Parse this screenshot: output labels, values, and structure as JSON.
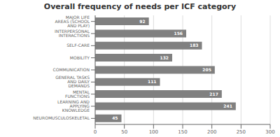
{
  "chart_data": {
    "type": "bar",
    "title": "Overall frequency of needs per ICF category",
    "categories": [
      "NEUROMUSCULOSKELETAL",
      "LEARNING AND APPLYING KNOWLEDGE",
      "MENTAL FUNCTIONS",
      "GENERAL TASKS AND DAILY DEMANDS",
      "COMMUNICATION",
      "MOBILITY",
      "SELF-CARE",
      "INTERPERSONAL INTERACTIONS",
      "MAJOR LIFE AREAS (SCHOOL AND PLAY)"
    ],
    "values": [
      45,
      241,
      217,
      111,
      205,
      132,
      183,
      156,
      92
    ],
    "color": "#808080",
    "orientation": "horizontal",
    "xlim": [
      0,
      300
    ],
    "xticks": [
      0,
      50,
      100,
      150,
      200,
      250,
      300
    ],
    "grid": true,
    "data_labels": true
  }
}
